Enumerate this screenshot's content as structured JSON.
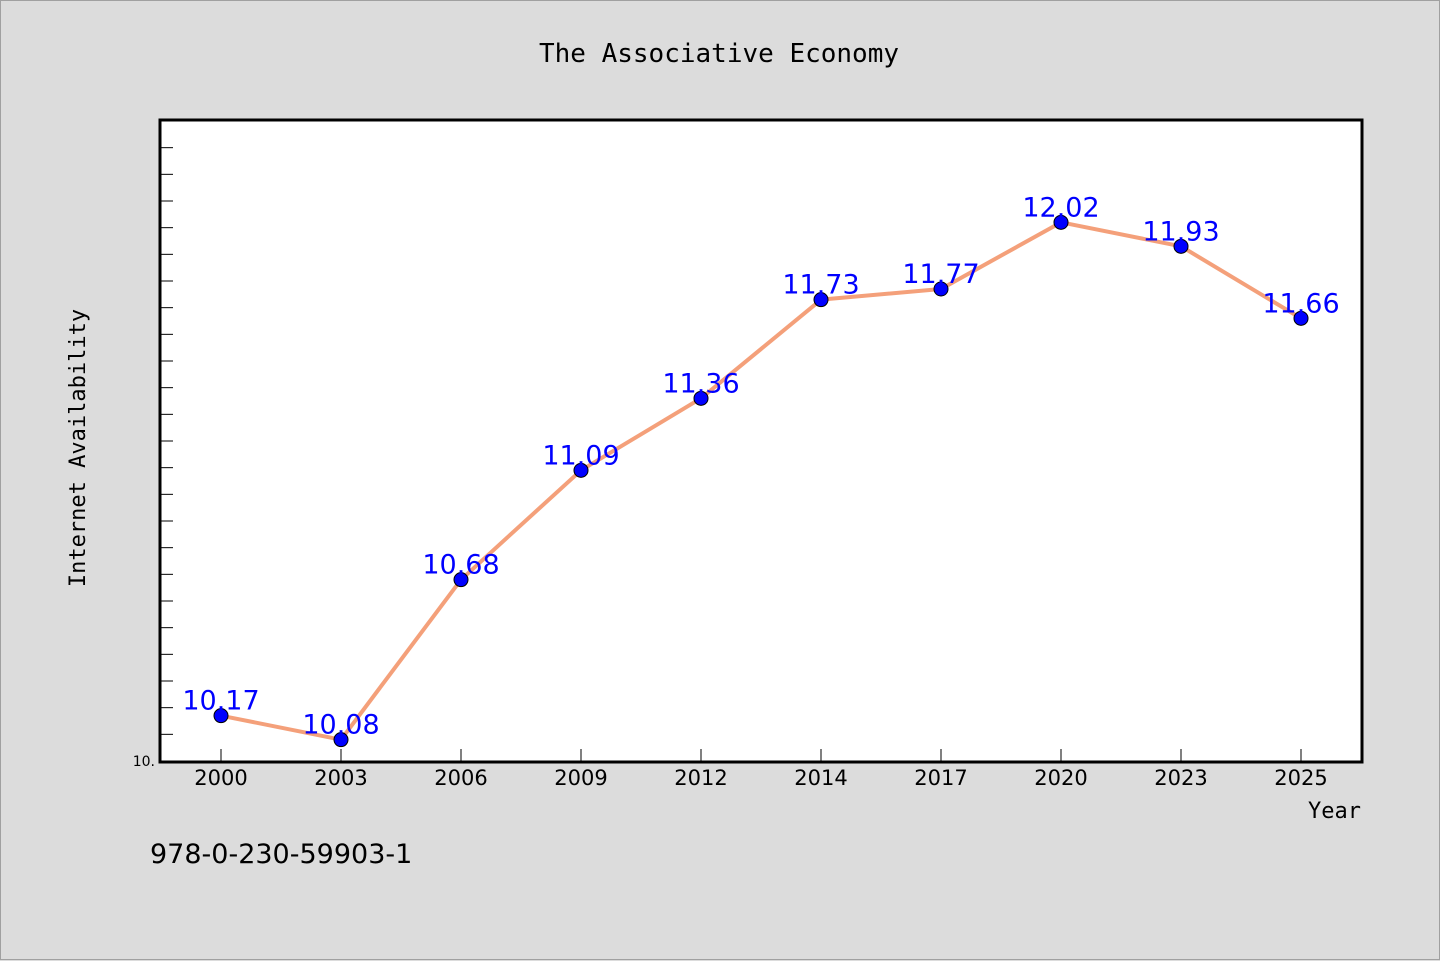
{
  "chart_data": {
    "type": "line",
    "title": "The Associative Economy",
    "xlabel": "Year",
    "ylabel": "Internet Availability",
    "categories": [
      "2000",
      "2003",
      "2006",
      "2009",
      "2012",
      "2014",
      "2017",
      "2020",
      "2023",
      "2025"
    ],
    "series": [
      {
        "values": [
          10.17,
          10.08,
          10.68,
          11.09,
          11.36,
          11.73,
          11.77,
          12.02,
          11.93,
          11.66
        ],
        "line_color": "#f4a07a",
        "marker_color": "#0000ff"
      }
    ],
    "y_tick_label": "10.",
    "ylim": [
      10.0,
      12.4
    ],
    "y_minor_step": 0.1,
    "grid": false,
    "legend": "none",
    "data_labels": [
      "10.17",
      "10.08",
      "10.68",
      "11.09",
      "11.36",
      "11.73",
      "11.77",
      "12.02",
      "11.93",
      "11.66"
    ]
  },
  "footer": {
    "isbn": "978-0-230-59903-1"
  }
}
